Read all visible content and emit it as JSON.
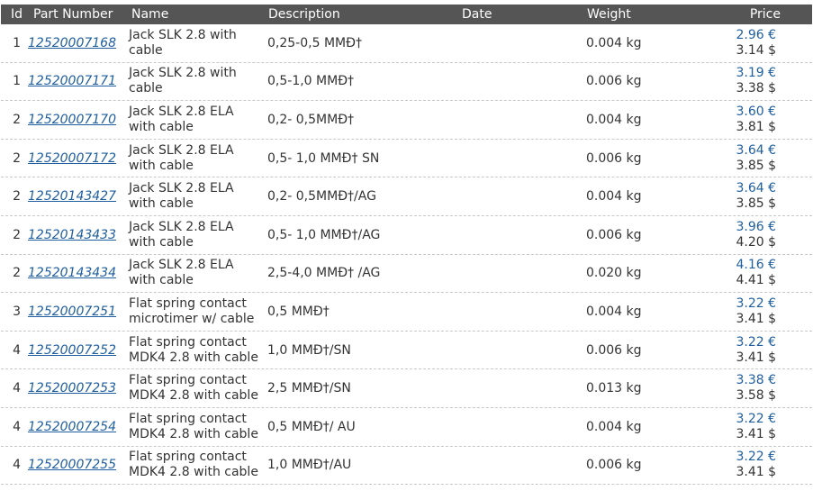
{
  "columns": {
    "id": "Id",
    "part_number": "Part Number",
    "name": "Name",
    "description": "Description",
    "date": "Date",
    "weight": "Weight",
    "price": "Price"
  },
  "rows": [
    {
      "id": "1",
      "part": "12520007168",
      "name": "Jack SLK 2.8 with cable",
      "desc": "0,25-0,5 MMĐ†",
      "date": "",
      "weight": "0.004 kg",
      "eur": "2.96 €",
      "usd": "3.14 $"
    },
    {
      "id": "1",
      "part": "12520007171",
      "name": "Jack SLK 2.8 with cable",
      "desc": "0,5-1,0 MMĐ†",
      "date": "",
      "weight": "0.006 kg",
      "eur": "3.19 €",
      "usd": "3.38 $"
    },
    {
      "id": "2",
      "part": "12520007170",
      "name": "Jack SLK 2.8 ELA with cable",
      "desc": "0,2- 0,5MMĐ†",
      "date": "",
      "weight": "0.004 kg",
      "eur": "3.60 €",
      "usd": "3.81 $"
    },
    {
      "id": "2",
      "part": "12520007172",
      "name": "Jack SLK 2.8 ELA with cable",
      "desc": "0,5- 1,0 MMĐ† SN",
      "date": "",
      "weight": "0.006 kg",
      "eur": "3.64 €",
      "usd": "3.85 $"
    },
    {
      "id": "2",
      "part": "12520143427",
      "name": "Jack SLK 2.8 ELA with cable",
      "desc": "0,2- 0,5MMĐ†/AG",
      "date": "",
      "weight": "0.004 kg",
      "eur": "3.64 €",
      "usd": "3.85 $"
    },
    {
      "id": "2",
      "part": "12520143433",
      "name": "Jack SLK 2.8 ELA with cable",
      "desc": "0,5- 1,0 MMĐ†/AG",
      "date": "",
      "weight": "0.006 kg",
      "eur": "3.96 €",
      "usd": "4.20 $"
    },
    {
      "id": "2",
      "part": "12520143434",
      "name": "Jack SLK 2.8 ELA with cable",
      "desc": "2,5-4,0 MMĐ† /AG",
      "date": "",
      "weight": "0.020 kg",
      "eur": "4.16 €",
      "usd": "4.41 $"
    },
    {
      "id": "3",
      "part": "12520007251",
      "name": "Flat spring contact microtimer w/ cable",
      "desc": "0,5 MMĐ†",
      "date": "",
      "weight": "0.004 kg",
      "eur": "3.22 €",
      "usd": "3.41 $"
    },
    {
      "id": "4",
      "part": "12520007252",
      "name": "Flat spring contact MDK4 2.8 with cable",
      "desc": "1,0 MMĐ†/SN",
      "date": "",
      "weight": "0.006 kg",
      "eur": "3.22 €",
      "usd": "3.41 $"
    },
    {
      "id": "4",
      "part": "12520007253",
      "name": "Flat spring contact MDK4 2.8 with cable",
      "desc": "2,5 MMĐ†/SN",
      "date": "",
      "weight": "0.013 kg",
      "eur": "3.38 €",
      "usd": "3.58 $"
    },
    {
      "id": "4",
      "part": "12520007254",
      "name": "Flat spring contact MDK4 2.8 with cable",
      "desc": "0,5 MMĐ†/ AU",
      "date": "",
      "weight": "0.004 kg",
      "eur": "3.22 €",
      "usd": "3.41 $"
    },
    {
      "id": "4",
      "part": "12520007255",
      "name": "Flat spring contact MDK4 2.8 with cable",
      "desc": "1,0 MMĐ†/AU",
      "date": "",
      "weight": "0.006 kg",
      "eur": "3.22 €",
      "usd": "3.41 $"
    }
  ]
}
